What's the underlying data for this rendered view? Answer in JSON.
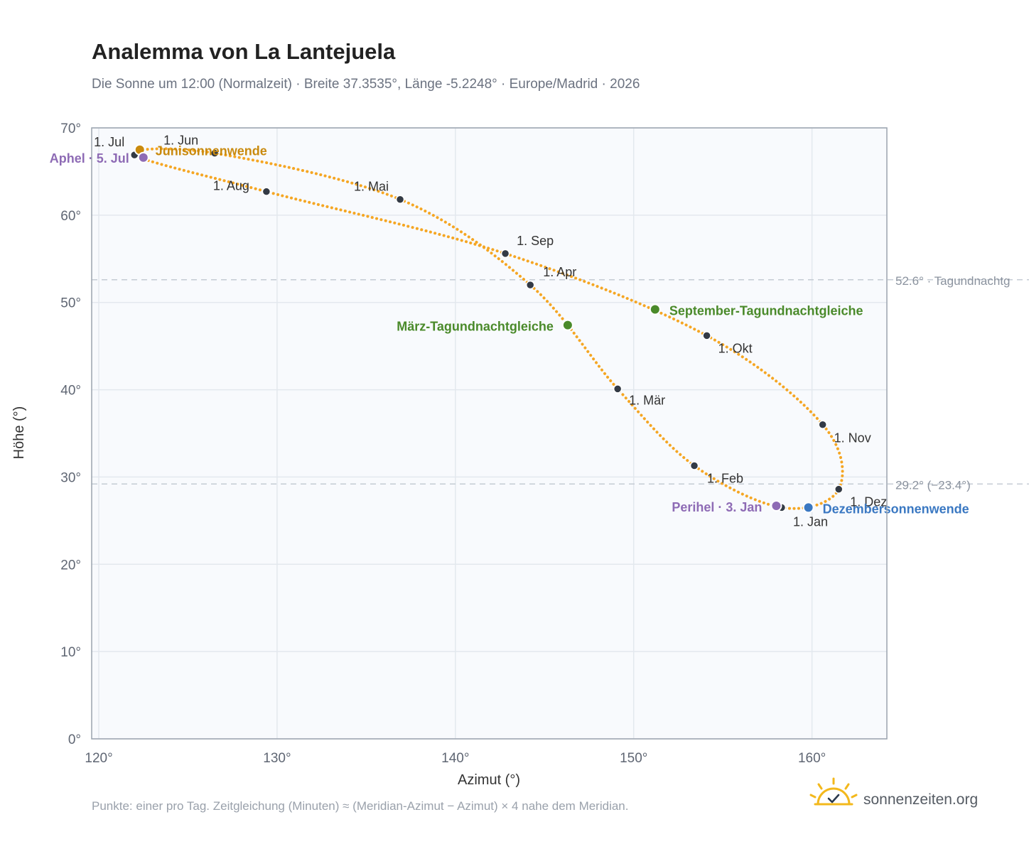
{
  "title": "Analemma von La Lantejuela",
  "subtitle": "Die Sonne um 12:00 (Normalzeit) · Breite 37.3535°, Länge -5.2248° · Europe/Madrid · 2026",
  "footnote": "Punkte: einer pro Tag. Zeitgleichung (Minuten) ≈ (Meridian-Azimut − Azimut) × 4 nahe dem Meridian.",
  "brand": "sonnenzeiten.org",
  "colors": {
    "curve": "#f5a623",
    "month_dot": "#333a45",
    "equinox": "#4a8a2a",
    "solstice_june": "#c98a0e",
    "solstice_december": "#3a78c2",
    "apsis": "#8e6bb5",
    "reference_line": "#c5ccd4",
    "plot_background": "#f8fafd",
    "frame": "#9aa3ae",
    "brand_sun": "#f3b81c"
  },
  "chart_data": {
    "type": "scatter",
    "xlabel": "Azimut (°)",
    "ylabel": "Höhe (°)",
    "xlim": [
      119.6,
      164.2
    ],
    "ylim": [
      0,
      70
    ],
    "xticks": [
      120,
      130,
      140,
      150,
      160
    ],
    "yticks": [
      0,
      10,
      20,
      30,
      40,
      50,
      60,
      70
    ],
    "tick_suffix": "°",
    "grid": true,
    "reference_lines": [
      {
        "y": 52.6,
        "label": "52.6° · Tagundnachtg"
      },
      {
        "y": 29.2,
        "label": "29.2° (−23.4°)"
      }
    ],
    "month_markers": [
      {
        "label": "1. Jan",
        "az": 158.3,
        "alt": 26.5
      },
      {
        "label": "1. Feb",
        "az": 153.4,
        "alt": 31.3
      },
      {
        "label": "1. Mär",
        "az": 149.1,
        "alt": 40.1
      },
      {
        "label": "1. Apr",
        "az": 144.2,
        "alt": 52.0
      },
      {
        "label": "1. Mai",
        "az": 136.9,
        "alt": 61.8
      },
      {
        "label": "1. Jun",
        "az": 126.5,
        "alt": 67.1
      },
      {
        "label": "1. Jul",
        "az": 122.0,
        "alt": 66.9
      },
      {
        "label": "1. Aug",
        "az": 129.4,
        "alt": 62.7
      },
      {
        "label": "1. Sep",
        "az": 142.8,
        "alt": 55.6
      },
      {
        "label": "1. Okt",
        "az": 154.1,
        "alt": 46.2
      },
      {
        "label": "1. Nov",
        "az": 160.6,
        "alt": 36.0
      },
      {
        "label": "1. Dez",
        "az": 161.5,
        "alt": 28.6
      }
    ],
    "events": [
      {
        "label": "März-Tagundnachtgleiche",
        "az": 146.3,
        "alt": 47.4,
        "kind": "equinox"
      },
      {
        "label": "Junisonnenwende",
        "az": 122.3,
        "alt": 67.5,
        "kind": "solstice_june"
      },
      {
        "label": "September-Tagundnachtgleiche",
        "az": 151.2,
        "alt": 49.2,
        "kind": "equinox"
      },
      {
        "label": "Dezembersonnenwende",
        "az": 159.8,
        "alt": 26.5,
        "kind": "solstice_december"
      },
      {
        "label": "Aphel · 5. Jul",
        "az": 122.5,
        "alt": 66.6,
        "kind": "apsis"
      },
      {
        "label": "Perihel · 3. Jan",
        "az": 158.0,
        "alt": 26.7,
        "kind": "apsis"
      }
    ]
  }
}
